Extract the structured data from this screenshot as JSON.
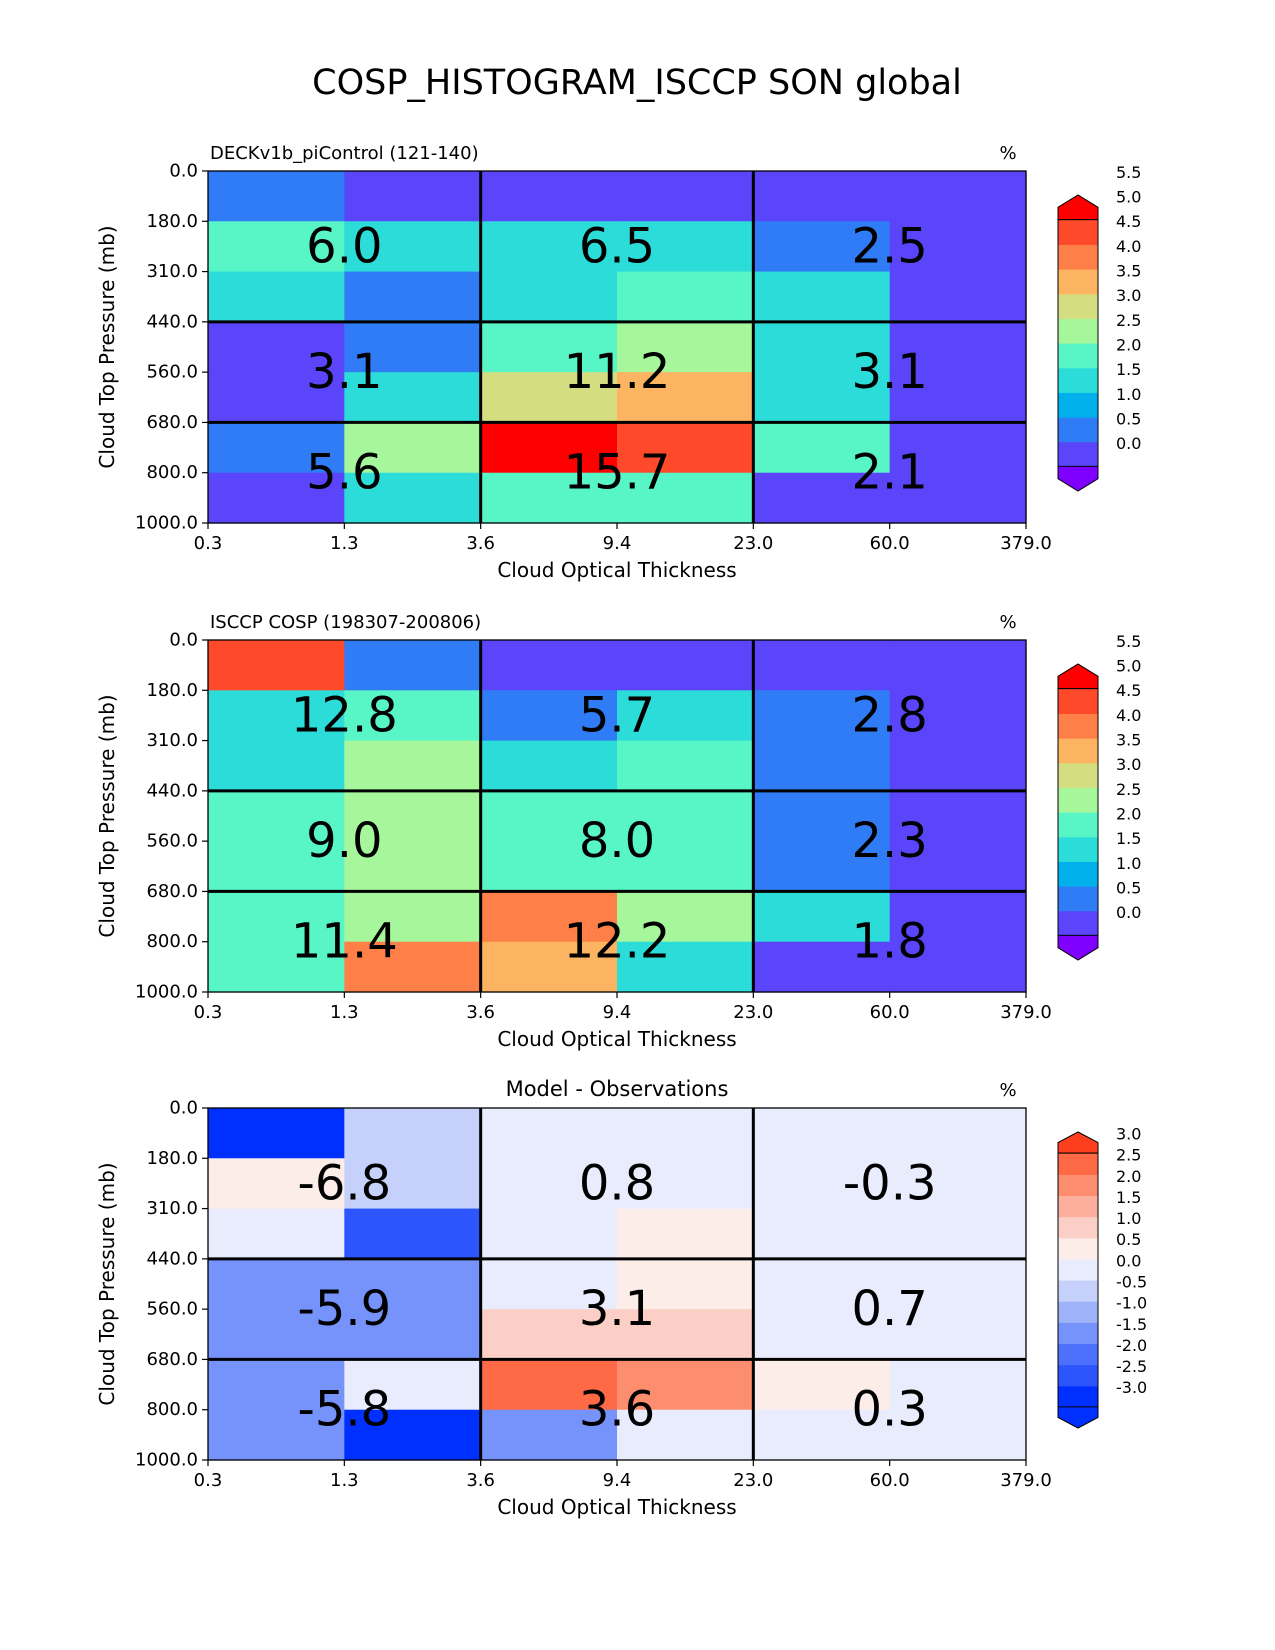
{
  "figure": {
    "title": "COSP_HISTOGRAM_ISCCP SON global"
  },
  "chart_data": [
    {
      "type": "heatmap",
      "title": "DECKv1b_piControl (121-140)",
      "units": "%",
      "xlabel": "Cloud Optical Thickness",
      "ylabel": "Cloud Top Pressure (mb)",
      "x_ticks": [
        "0.3",
        "1.3",
        "3.6",
        "9.4",
        "23.0",
        "60.0",
        "379.0"
      ],
      "y_ticks": [
        "0.0",
        "180.0",
        "310.0",
        "440.0",
        "560.0",
        "680.0",
        "800.0",
        "1000.0"
      ],
      "colorbar_ticks": [
        "0.0",
        "0.5",
        "1.0",
        "1.5",
        "2.0",
        "2.5",
        "3.0",
        "3.5",
        "4.0",
        "4.5",
        "5.0",
        "5.5"
      ],
      "colormap": "rainbow",
      "vmin": 0.0,
      "vmax": 5.5,
      "values": [
        [
          0.5,
          0.2,
          0.2,
          0.2,
          0.2,
          0.2
        ],
        [
          2.0,
          1.5,
          1.5,
          1.5,
          0.7,
          0.2
        ],
        [
          1.5,
          0.7,
          1.5,
          2.3,
          1.5,
          0.2
        ],
        [
          0.2,
          0.7,
          2.0,
          2.8,
          1.5,
          0.2
        ],
        [
          0.2,
          1.5,
          3.3,
          3.7,
          1.5,
          0.2
        ],
        [
          0.7,
          3.0,
          5.8,
          5.2,
          2.0,
          0.2
        ],
        [
          0.2,
          1.5,
          2.3,
          2.0,
          0.2,
          0.2
        ]
      ],
      "group_labels": [
        [
          "6.0",
          "6.5",
          "2.5"
        ],
        [
          "3.1",
          "11.2",
          "3.1"
        ],
        [
          "5.6",
          "15.7",
          "2.1"
        ]
      ]
    },
    {
      "type": "heatmap",
      "title": "ISCCP COSP (198307-200806)",
      "units": "%",
      "xlabel": "Cloud Optical Thickness",
      "ylabel": "Cloud Top Pressure (mb)",
      "x_ticks": [
        "0.3",
        "1.3",
        "3.6",
        "9.4",
        "23.0",
        "60.0",
        "379.0"
      ],
      "y_ticks": [
        "0.0",
        "180.0",
        "310.0",
        "440.0",
        "560.0",
        "680.0",
        "800.0",
        "1000.0"
      ],
      "colorbar_ticks": [
        "0.0",
        "0.5",
        "1.0",
        "1.5",
        "2.0",
        "2.5",
        "3.0",
        "3.5",
        "4.0",
        "4.5",
        "5.0",
        "5.5"
      ],
      "colormap": "rainbow",
      "vmin": 0.0,
      "vmax": 5.5,
      "values": [
        [
          5.2,
          0.7,
          0.2,
          0.2,
          0.2,
          0.2
        ],
        [
          1.5,
          2.0,
          0.7,
          1.5,
          0.7,
          0.2
        ],
        [
          1.5,
          3.0,
          1.5,
          2.0,
          0.7,
          0.2
        ],
        [
          2.0,
          2.8,
          2.0,
          2.0,
          0.7,
          0.2
        ],
        [
          2.0,
          3.0,
          2.3,
          2.3,
          0.7,
          0.2
        ],
        [
          2.0,
          3.0,
          4.2,
          3.0,
          1.5,
          0.2
        ],
        [
          2.0,
          4.2,
          3.7,
          1.5,
          0.2,
          0.2
        ]
      ],
      "group_labels": [
        [
          "12.8",
          "5.7",
          "2.8"
        ],
        [
          "9.0",
          "8.0",
          "2.3"
        ],
        [
          "11.4",
          "12.2",
          "1.8"
        ]
      ]
    },
    {
      "type": "heatmap",
      "title": "Model - Observations",
      "units": "%",
      "xlabel": "Cloud Optical Thickness",
      "ylabel": "Cloud Top Pressure (mb)",
      "x_ticks": [
        "0.3",
        "1.3",
        "3.6",
        "9.4",
        "23.0",
        "60.0",
        "379.0"
      ],
      "y_ticks": [
        "0.0",
        "180.0",
        "310.0",
        "440.0",
        "560.0",
        "680.0",
        "800.0",
        "1000.0"
      ],
      "colorbar_ticks": [
        "-3.0",
        "-2.5",
        "-2.0",
        "-1.5",
        "-1.0",
        "-0.5",
        "0.0",
        "0.5",
        "1.0",
        "1.5",
        "2.0",
        "2.5",
        "3.0"
      ],
      "colormap": "bwr",
      "vmin": -3.0,
      "vmax": 3.0,
      "values": [
        [
          -3.2,
          -0.7,
          -0.2,
          -0.2,
          -0.2,
          -0.2
        ],
        [
          0.7,
          -0.7,
          0.2,
          0.2,
          -0.2,
          0.2
        ],
        [
          0.2,
          -2.3,
          -0.2,
          0.7,
          0.2,
          0.2
        ],
        [
          -1.3,
          -1.7,
          0.2,
          0.7,
          0.2,
          0.2
        ],
        [
          -1.3,
          -1.7,
          1.2,
          1.2,
          0.2,
          -0.2
        ],
        [
          -1.3,
          -0.2,
          2.7,
          2.2,
          0.7,
          -0.2
        ],
        [
          -1.7,
          -3.2,
          -1.3,
          0.2,
          -0.2,
          -0.2
        ]
      ],
      "group_labels": [
        [
          "-6.8",
          "0.8",
          "-0.3"
        ],
        [
          "-5.9",
          "3.1",
          "0.7"
        ],
        [
          "-5.8",
          "3.6",
          "0.3"
        ]
      ]
    }
  ]
}
